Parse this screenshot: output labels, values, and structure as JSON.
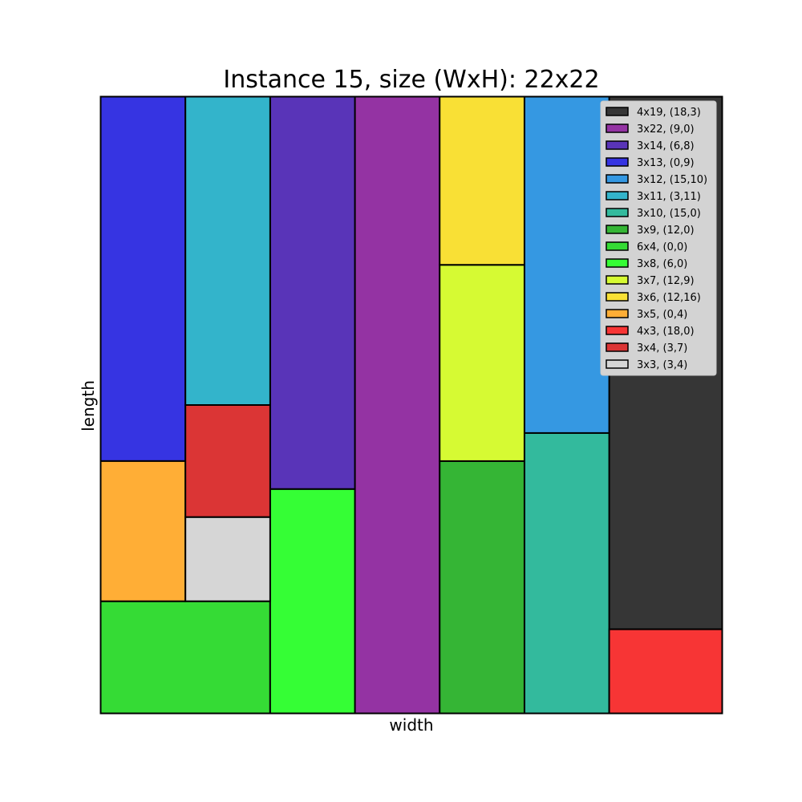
{
  "chart_data": {
    "type": "rectangle-packing",
    "title": "Instance 15, size (WxH): 22x22",
    "xlabel": "width",
    "ylabel": "length",
    "xlim": [
      0,
      22
    ],
    "ylim": [
      0,
      22
    ],
    "grid": false,
    "legend_position": "top-right",
    "rects": [
      {
        "label": "4x19, (18,3)",
        "w": 4,
        "h": 19,
        "x": 18,
        "y": 3,
        "color": "#363636"
      },
      {
        "label": "3x22, (9,0)",
        "w": 3,
        "h": 22,
        "x": 9,
        "y": 0,
        "color": "#9433A3"
      },
      {
        "label": "3x14, (6,8)",
        "w": 3,
        "h": 14,
        "x": 6,
        "y": 8,
        "color": "#5934B8"
      },
      {
        "label": "3x13, (0,9)",
        "w": 3,
        "h": 13,
        "x": 0,
        "y": 9,
        "color": "#3634E2"
      },
      {
        "label": "3x12, (15,10)",
        "w": 3,
        "h": 12,
        "x": 15,
        "y": 10,
        "color": "#3598E2"
      },
      {
        "label": "3x11, (3,11)",
        "w": 3,
        "h": 11,
        "x": 3,
        "y": 11,
        "color": "#33B4CB"
      },
      {
        "label": "3x10, (15,0)",
        "w": 3,
        "h": 10,
        "x": 15,
        "y": 0,
        "color": "#33BA9D"
      },
      {
        "label": "3x9, (12,0)",
        "w": 3,
        "h": 9,
        "x": 12,
        "y": 0,
        "color": "#35B535"
      },
      {
        "label": "6x4, (0,0)",
        "w": 6,
        "h": 4,
        "x": 0,
        "y": 0,
        "color": "#35DB35"
      },
      {
        "label": "3x8, (6,0)",
        "w": 3,
        "h": 8,
        "x": 6,
        "y": 0,
        "color": "#35FE35"
      },
      {
        "label": "3x7, (12,9)",
        "w": 3,
        "h": 7,
        "x": 12,
        "y": 9,
        "color": "#D6FA33"
      },
      {
        "label": "3x6, (12,16)",
        "w": 3,
        "h": 6,
        "x": 12,
        "y": 16,
        "color": "#F9E035"
      },
      {
        "label": "3x5, (0,4)",
        "w": 3,
        "h": 5,
        "x": 0,
        "y": 4,
        "color": "#FFAE36"
      },
      {
        "label": "4x3, (18,0)",
        "w": 4,
        "h": 3,
        "x": 18,
        "y": 0,
        "color": "#F73535"
      },
      {
        "label": "3x4, (3,7)",
        "w": 3,
        "h": 4,
        "x": 3,
        "y": 7,
        "color": "#DB3535"
      },
      {
        "label": "3x3, (3,4)",
        "w": 3,
        "h": 3,
        "x": 3,
        "y": 4,
        "color": "#D6D6D6"
      }
    ]
  }
}
